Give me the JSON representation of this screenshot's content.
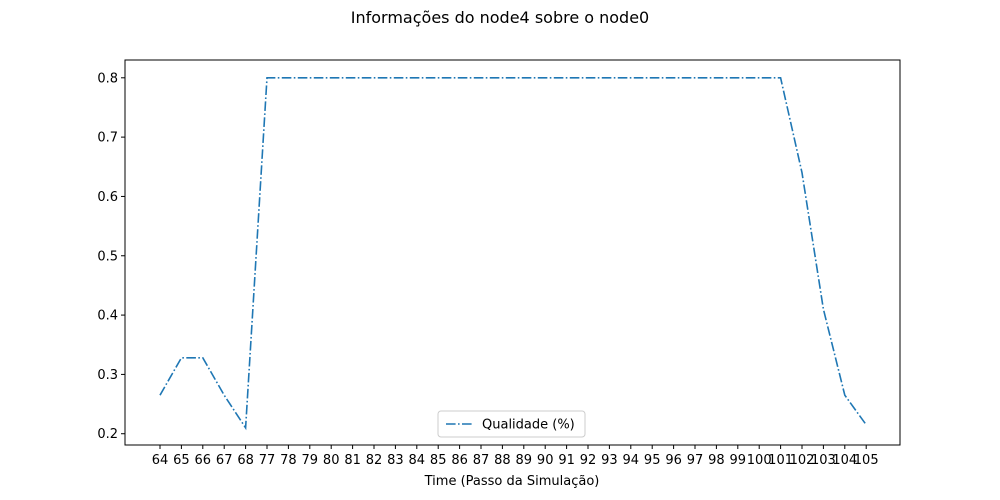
{
  "chart_data": {
    "type": "line",
    "title": "Informações do node4 sobre o node0",
    "xlabel": "Time (Passo da Simulação)",
    "ylabel": "",
    "categories": [
      "64",
      "65",
      "66",
      "67",
      "68",
      "77",
      "78",
      "79",
      "80",
      "81",
      "82",
      "83",
      "84",
      "85",
      "86",
      "87",
      "88",
      "89",
      "90",
      "91",
      "92",
      "93",
      "94",
      "95",
      "96",
      "97",
      "98",
      "99",
      "100",
      "101",
      "102",
      "103",
      "104",
      "105"
    ],
    "series": [
      {
        "name": "Qualidade (%)",
        "color": "#1f77b4",
        "line_style": "dash-dot",
        "values": [
          0.265,
          0.328,
          0.328,
          0.265,
          0.21,
          0.8,
          0.8,
          0.8,
          0.8,
          0.8,
          0.8,
          0.8,
          0.8,
          0.8,
          0.8,
          0.8,
          0.8,
          0.8,
          0.8,
          0.8,
          0.8,
          0.8,
          0.8,
          0.8,
          0.8,
          0.8,
          0.8,
          0.8,
          0.8,
          0.8,
          0.64,
          0.41,
          0.265,
          0.215
        ]
      }
    ],
    "yticks": [
      0.2,
      0.3,
      0.4,
      0.5,
      0.6,
      0.7,
      0.8
    ],
    "ylim": [
      0.181,
      0.83
    ],
    "grid": false,
    "legend_position": "bottom-center"
  }
}
